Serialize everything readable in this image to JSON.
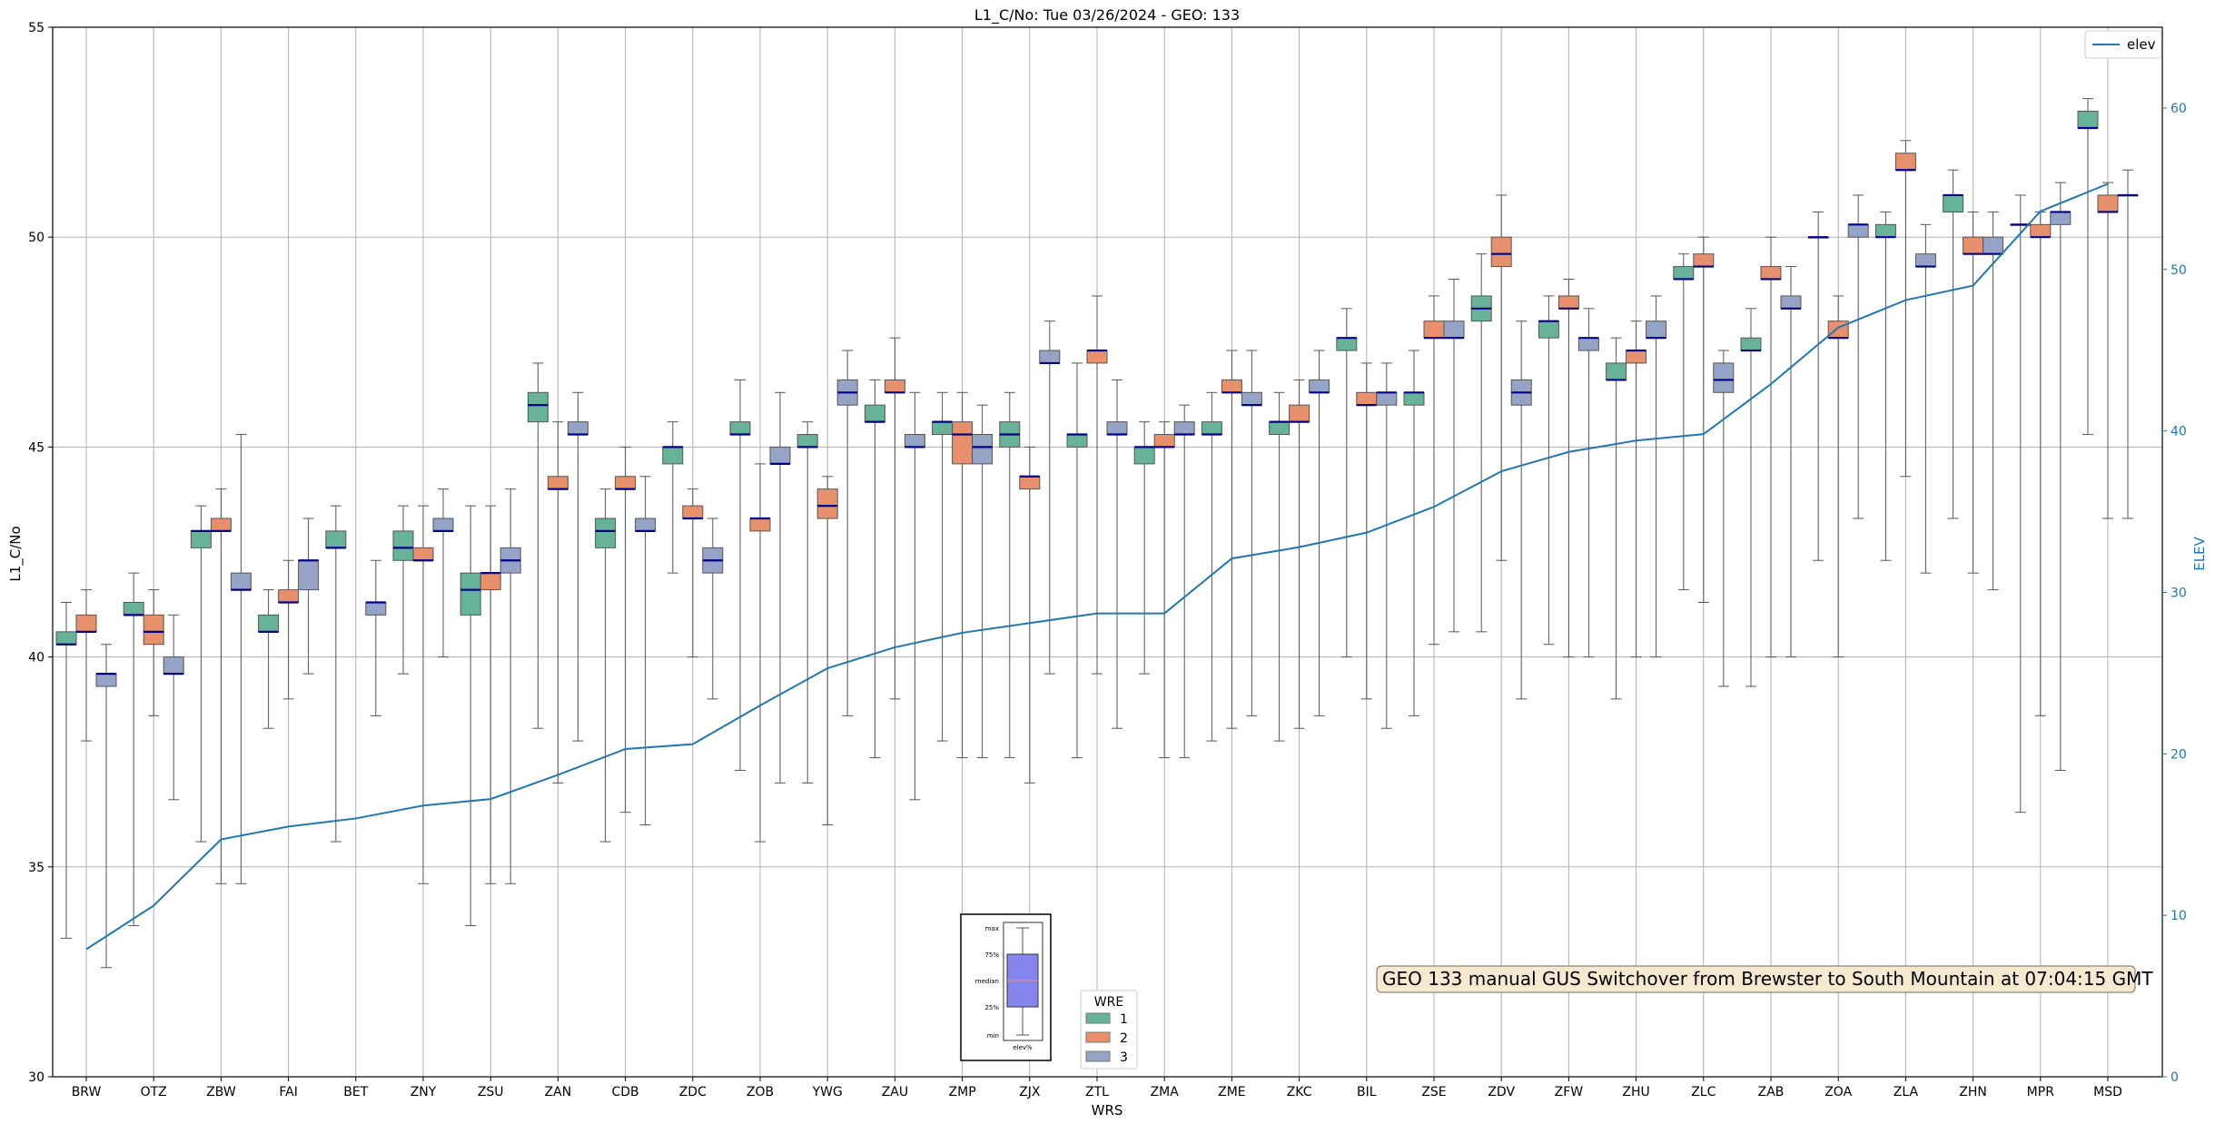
{
  "chart_data": {
    "type": "box",
    "title": "L1_C/No: Tue 03/26/2024 - GEO: 133",
    "xlabel": "WRS",
    "ylabel": "L1_C/No",
    "y2label": "ELEV",
    "ylim": [
      30,
      55
    ],
    "y2lim": [
      0,
      65
    ],
    "yticks": [
      "30",
      "35",
      "40",
      "45",
      "50",
      "55"
    ],
    "y2ticks": [
      "0",
      "10",
      "20",
      "30",
      "40",
      "50",
      "60"
    ],
    "grid": true,
    "categories": [
      "BRW",
      "OTZ",
      "ZBW",
      "FAI",
      "BET",
      "ZNY",
      "ZSU",
      "ZAN",
      "CDB",
      "ZDC",
      "ZOB",
      "YWG",
      "ZAU",
      "ZMP",
      "ZJX",
      "ZTL",
      "ZMA",
      "ZME",
      "ZKC",
      "BIL",
      "ZSE",
      "ZDV",
      "ZFW",
      "ZHU",
      "ZLC",
      "ZAB",
      "ZOA",
      "ZLA",
      "ZHN",
      "MPR",
      "MSD"
    ],
    "legend": {
      "title": "WRE",
      "entries": [
        {
          "label": "1",
          "color": "#66b39a"
        },
        {
          "label": "2",
          "color": "#e8906b"
        },
        {
          "label": "3",
          "color": "#95a3c6"
        }
      ]
    },
    "line_legend": {
      "label": "elev",
      "color": "#1f77b4",
      "placement": "top-right"
    },
    "elev": [
      7.9,
      10.6,
      14.7,
      15.5,
      16.0,
      16.8,
      17.2,
      18.7,
      20.3,
      20.6,
      23.0,
      25.3,
      26.6,
      27.5,
      28.1,
      28.7,
      28.7,
      32.1,
      32.8,
      33.7,
      35.3,
      37.5,
      38.7,
      39.4,
      39.8,
      42.9,
      46.4,
      48.1,
      49.0,
      53.6,
      55.3
    ],
    "series": [
      {
        "name": "1",
        "color": "#66b39a",
        "boxes": [
          {
            "cat": "BRW",
            "min": 33.3,
            "q1": 40.3,
            "median": 40.3,
            "q3": 40.6,
            "max": 41.3
          },
          {
            "cat": "OTZ",
            "min": 33.6,
            "q1": 41.0,
            "median": 41.0,
            "q3": 41.3,
            "max": 42.0
          },
          {
            "cat": "ZBW",
            "min": 35.6,
            "q1": 42.6,
            "median": 43.0,
            "q3": 43.0,
            "max": 43.6
          },
          {
            "cat": "FAI",
            "min": 38.3,
            "q1": 40.6,
            "median": 40.6,
            "q3": 41.0,
            "max": 41.6
          },
          {
            "cat": "BET",
            "min": 35.6,
            "q1": 42.6,
            "median": 42.6,
            "q3": 43.0,
            "max": 43.6
          },
          {
            "cat": "ZNY",
            "min": 39.6,
            "q1": 42.3,
            "median": 42.6,
            "q3": 43.0,
            "max": 43.6
          },
          {
            "cat": "ZSU",
            "min": 33.6,
            "q1": 41.0,
            "median": 41.6,
            "q3": 42.0,
            "max": 43.6
          },
          {
            "cat": "ZAN",
            "min": 38.3,
            "q1": 45.6,
            "median": 46.0,
            "q3": 46.3,
            "max": 47.0
          },
          {
            "cat": "CDB",
            "min": 35.6,
            "q1": 42.6,
            "median": 43.0,
            "q3": 43.3,
            "max": 44.0
          },
          {
            "cat": "ZDC",
            "min": 42.0,
            "q1": 44.6,
            "median": 45.0,
            "q3": 45.0,
            "max": 45.6
          },
          {
            "cat": "ZOB",
            "min": 37.3,
            "q1": 45.3,
            "median": 45.3,
            "q3": 45.6,
            "max": 46.6
          },
          {
            "cat": "YWG",
            "min": 37.0,
            "q1": 45.0,
            "median": 45.0,
            "q3": 45.3,
            "max": 45.6
          },
          {
            "cat": "ZAU",
            "min": 37.6,
            "q1": 45.6,
            "median": 45.6,
            "q3": 46.0,
            "max": 46.6
          },
          {
            "cat": "ZMP",
            "min": 38.0,
            "q1": 45.3,
            "median": 45.6,
            "q3": 45.6,
            "max": 46.3
          },
          {
            "cat": "ZJX",
            "min": 37.6,
            "q1": 45.0,
            "median": 45.3,
            "q3": 45.6,
            "max": 46.3
          },
          {
            "cat": "ZTL",
            "min": 37.6,
            "q1": 45.0,
            "median": 45.3,
            "q3": 45.3,
            "max": 47.0
          },
          {
            "cat": "ZMA",
            "min": 39.6,
            "q1": 44.6,
            "median": 45.0,
            "q3": 45.0,
            "max": 45.6
          },
          {
            "cat": "ZME",
            "min": 38.0,
            "q1": 45.3,
            "median": 45.3,
            "q3": 45.6,
            "max": 46.3
          },
          {
            "cat": "ZKC",
            "min": 38.0,
            "q1": 45.3,
            "median": 45.6,
            "q3": 45.6,
            "max": 46.3
          },
          {
            "cat": "BIL",
            "min": 40.0,
            "q1": 47.3,
            "median": 47.6,
            "q3": 47.6,
            "max": 48.3
          },
          {
            "cat": "ZSE",
            "min": 38.6,
            "q1": 46.0,
            "median": 46.3,
            "q3": 46.3,
            "max": 47.3
          },
          {
            "cat": "ZDV",
            "min": 40.6,
            "q1": 48.0,
            "median": 48.3,
            "q3": 48.6,
            "max": 49.6
          },
          {
            "cat": "ZFW",
            "min": 40.3,
            "q1": 47.6,
            "median": 48.0,
            "q3": 48.0,
            "max": 48.6
          },
          {
            "cat": "ZHU",
            "min": 39.0,
            "q1": 46.6,
            "median": 46.6,
            "q3": 47.0,
            "max": 47.6
          },
          {
            "cat": "ZLC",
            "min": 41.6,
            "q1": 49.0,
            "median": 49.0,
            "q3": 49.3,
            "max": 49.6
          },
          {
            "cat": "ZAB",
            "min": 39.3,
            "q1": 47.3,
            "median": 47.3,
            "q3": 47.6,
            "max": 48.3
          },
          {
            "cat": "ZOA",
            "min": 42.3,
            "q1": 50.0,
            "median": 50.0,
            "q3": 50.0,
            "max": 50.6
          },
          {
            "cat": "ZLA",
            "min": 42.3,
            "q1": 50.0,
            "median": 50.0,
            "q3": 50.3,
            "max": 50.6
          },
          {
            "cat": "ZHN",
            "min": 43.3,
            "q1": 50.6,
            "median": 51.0,
            "q3": 51.0,
            "max": 51.6
          },
          {
            "cat": "MPR",
            "min": 36.3,
            "q1": 50.3,
            "median": 50.3,
            "q3": 50.3,
            "max": 51.0
          },
          {
            "cat": "MSD",
            "min": 45.3,
            "q1": 52.6,
            "median": 52.6,
            "q3": 53.0,
            "max": 53.3
          }
        ]
      },
      {
        "name": "2",
        "color": "#e8906b",
        "boxes": [
          {
            "cat": "BRW",
            "min": 38.0,
            "q1": 40.6,
            "median": 40.6,
            "q3": 41.0,
            "max": 41.6
          },
          {
            "cat": "OTZ",
            "min": 38.6,
            "q1": 40.3,
            "median": 40.6,
            "q3": 41.0,
            "max": 41.6
          },
          {
            "cat": "ZBW",
            "min": 34.6,
            "q1": 43.0,
            "median": 43.0,
            "q3": 43.3,
            "max": 44.0
          },
          {
            "cat": "FAI",
            "min": 39.0,
            "q1": 41.3,
            "median": 41.3,
            "q3": 41.6,
            "max": 42.3
          },
          {
            "cat": "ZNY",
            "min": 34.6,
            "q1": 42.3,
            "median": 42.3,
            "q3": 42.6,
            "max": 43.6
          },
          {
            "cat": "ZSU",
            "min": 34.6,
            "q1": 41.6,
            "median": 42.0,
            "q3": 42.0,
            "max": 43.6
          },
          {
            "cat": "ZAN",
            "min": 37.0,
            "q1": 44.0,
            "median": 44.0,
            "q3": 44.3,
            "max": 45.6
          },
          {
            "cat": "CDB",
            "min": 36.3,
            "q1": 44.0,
            "median": 44.0,
            "q3": 44.3,
            "max": 45.0
          },
          {
            "cat": "ZDC",
            "min": 40.0,
            "q1": 43.3,
            "median": 43.3,
            "q3": 43.6,
            "max": 44.0
          },
          {
            "cat": "ZOB",
            "min": 35.6,
            "q1": 43.0,
            "median": 43.3,
            "q3": 43.3,
            "max": 44.6
          },
          {
            "cat": "YWG",
            "min": 36.0,
            "q1": 43.3,
            "median": 43.6,
            "q3": 44.0,
            "max": 44.3
          },
          {
            "cat": "ZAU",
            "min": 39.0,
            "q1": 46.3,
            "median": 46.3,
            "q3": 46.6,
            "max": 47.6
          },
          {
            "cat": "ZMP",
            "min": 37.6,
            "q1": 44.6,
            "median": 45.3,
            "q3": 45.6,
            "max": 46.3
          },
          {
            "cat": "ZJX",
            "min": 37.0,
            "q1": 44.0,
            "median": 44.3,
            "q3": 44.3,
            "max": 45.0
          },
          {
            "cat": "ZTL",
            "min": 39.6,
            "q1": 47.0,
            "median": 47.3,
            "q3": 47.3,
            "max": 48.6
          },
          {
            "cat": "ZMA",
            "min": 37.6,
            "q1": 45.0,
            "median": 45.0,
            "q3": 45.3,
            "max": 45.6
          },
          {
            "cat": "ZME",
            "min": 38.3,
            "q1": 46.3,
            "median": 46.3,
            "q3": 46.6,
            "max": 47.3
          },
          {
            "cat": "ZKC",
            "min": 38.3,
            "q1": 45.6,
            "median": 45.6,
            "q3": 46.0,
            "max": 46.6
          },
          {
            "cat": "BIL",
            "min": 39.0,
            "q1": 46.0,
            "median": 46.0,
            "q3": 46.3,
            "max": 47.0
          },
          {
            "cat": "ZSE",
            "min": 40.3,
            "q1": 47.6,
            "median": 47.6,
            "q3": 48.0,
            "max": 48.6
          },
          {
            "cat": "ZDV",
            "min": 42.3,
            "q1": 49.3,
            "median": 49.6,
            "q3": 50.0,
            "max": 51.0
          },
          {
            "cat": "ZFW",
            "min": 40.0,
            "q1": 48.3,
            "median": 48.3,
            "q3": 48.6,
            "max": 49.0
          },
          {
            "cat": "ZHU",
            "min": 40.0,
            "q1": 47.0,
            "median": 47.3,
            "q3": 47.3,
            "max": 48.0
          },
          {
            "cat": "ZLC",
            "min": 41.3,
            "q1": 49.3,
            "median": 49.3,
            "q3": 49.6,
            "max": 50.0
          },
          {
            "cat": "ZAB",
            "min": 40.0,
            "q1": 49.0,
            "median": 49.0,
            "q3": 49.3,
            "max": 50.0
          },
          {
            "cat": "ZOA",
            "min": 40.0,
            "q1": 47.6,
            "median": 47.6,
            "q3": 48.0,
            "max": 48.6
          },
          {
            "cat": "ZLA",
            "min": 44.3,
            "q1": 51.6,
            "median": 51.6,
            "q3": 52.0,
            "max": 52.3
          },
          {
            "cat": "ZHN",
            "min": 42.0,
            "q1": 49.6,
            "median": 49.6,
            "q3": 50.0,
            "max": 50.6
          },
          {
            "cat": "MPR",
            "min": 38.6,
            "q1": 50.0,
            "median": 50.0,
            "q3": 50.3,
            "max": 50.6
          },
          {
            "cat": "MSD",
            "min": 43.3,
            "q1": 50.6,
            "median": 50.6,
            "q3": 51.0,
            "max": 51.3
          }
        ]
      },
      {
        "name": "3",
        "color": "#95a3c6",
        "boxes": [
          {
            "cat": "BRW",
            "min": 32.6,
            "q1": 39.3,
            "median": 39.6,
            "q3": 39.6,
            "max": 40.3
          },
          {
            "cat": "OTZ",
            "min": 36.6,
            "q1": 39.6,
            "median": 39.6,
            "q3": 40.0,
            "max": 41.0
          },
          {
            "cat": "ZBW",
            "min": 34.6,
            "q1": 41.6,
            "median": 41.6,
            "q3": 42.0,
            "max": 45.3
          },
          {
            "cat": "FAI",
            "min": 39.6,
            "q1": 41.6,
            "median": 42.3,
            "q3": 42.3,
            "max": 43.3
          },
          {
            "cat": "BET",
            "min": 38.6,
            "q1": 41.0,
            "median": 41.3,
            "q3": 41.3,
            "max": 42.3
          },
          {
            "cat": "ZNY",
            "min": 40.0,
            "q1": 43.0,
            "median": 43.0,
            "q3": 43.3,
            "max": 44.0
          },
          {
            "cat": "ZSU",
            "min": 34.6,
            "q1": 42.0,
            "median": 42.3,
            "q3": 42.6,
            "max": 44.0
          },
          {
            "cat": "ZAN",
            "min": 38.0,
            "q1": 45.3,
            "median": 45.3,
            "q3": 45.6,
            "max": 46.3
          },
          {
            "cat": "CDB",
            "min": 36.0,
            "q1": 43.0,
            "median": 43.0,
            "q3": 43.3,
            "max": 44.3
          },
          {
            "cat": "ZDC",
            "min": 39.0,
            "q1": 42.0,
            "median": 42.3,
            "q3": 42.6,
            "max": 43.3
          },
          {
            "cat": "ZOB",
            "min": 37.0,
            "q1": 44.6,
            "median": 44.6,
            "q3": 45.0,
            "max": 46.3
          },
          {
            "cat": "YWG",
            "min": 38.6,
            "q1": 46.0,
            "median": 46.3,
            "q3": 46.6,
            "max": 47.3
          },
          {
            "cat": "ZAU",
            "min": 36.6,
            "q1": 45.0,
            "median": 45.0,
            "q3": 45.3,
            "max": 46.3
          },
          {
            "cat": "ZMP",
            "min": 37.6,
            "q1": 44.6,
            "median": 45.0,
            "q3": 45.3,
            "max": 46.0
          },
          {
            "cat": "ZJX",
            "min": 39.6,
            "q1": 47.0,
            "median": 47.0,
            "q3": 47.3,
            "max": 48.0
          },
          {
            "cat": "ZTL",
            "min": 38.3,
            "q1": 45.3,
            "median": 45.3,
            "q3": 45.6,
            "max": 46.6
          },
          {
            "cat": "ZMA",
            "min": 37.6,
            "q1": 45.3,
            "median": 45.3,
            "q3": 45.6,
            "max": 46.0
          },
          {
            "cat": "ZME",
            "min": 38.6,
            "q1": 46.0,
            "median": 46.0,
            "q3": 46.3,
            "max": 47.3
          },
          {
            "cat": "ZKC",
            "min": 38.6,
            "q1": 46.3,
            "median": 46.3,
            "q3": 46.6,
            "max": 47.3
          },
          {
            "cat": "BIL",
            "min": 38.3,
            "q1": 46.0,
            "median": 46.3,
            "q3": 46.3,
            "max": 47.0
          },
          {
            "cat": "ZSE",
            "min": 40.6,
            "q1": 47.6,
            "median": 47.6,
            "q3": 48.0,
            "max": 49.0
          },
          {
            "cat": "ZDV",
            "min": 39.0,
            "q1": 46.0,
            "median": 46.3,
            "q3": 46.6,
            "max": 48.0
          },
          {
            "cat": "ZFW",
            "min": 40.0,
            "q1": 47.3,
            "median": 47.6,
            "q3": 47.6,
            "max": 48.3
          },
          {
            "cat": "ZHU",
            "min": 40.0,
            "q1": 47.6,
            "median": 47.6,
            "q3": 48.0,
            "max": 48.6
          },
          {
            "cat": "ZLC",
            "min": 39.3,
            "q1": 46.3,
            "median": 46.6,
            "q3": 47.0,
            "max": 47.3
          },
          {
            "cat": "ZAB",
            "min": 40.0,
            "q1": 48.3,
            "median": 48.3,
            "q3": 48.6,
            "max": 49.3
          },
          {
            "cat": "ZOA",
            "min": 43.3,
            "q1": 50.0,
            "median": 50.3,
            "q3": 50.3,
            "max": 51.0
          },
          {
            "cat": "ZLA",
            "min": 42.0,
            "q1": 49.3,
            "median": 49.3,
            "q3": 49.6,
            "max": 50.3
          },
          {
            "cat": "ZHN",
            "min": 41.6,
            "q1": 49.6,
            "median": 49.6,
            "q3": 50.0,
            "max": 50.6
          },
          {
            "cat": "MPR",
            "min": 37.3,
            "q1": 50.3,
            "median": 50.6,
            "q3": 50.6,
            "max": 51.3
          },
          {
            "cat": "MSD",
            "min": 43.3,
            "q1": 51.0,
            "median": 51.0,
            "q3": 51.0,
            "max": 51.6
          }
        ]
      }
    ],
    "annotation": "GEO 133 manual GUS Switchover from Brewster to South Mountain at 07:04:15 GMT",
    "boxplot_key": {
      "labels": [
        "max",
        "75%",
        "median",
        "25%",
        "min"
      ],
      "xtick": "elev%"
    }
  }
}
